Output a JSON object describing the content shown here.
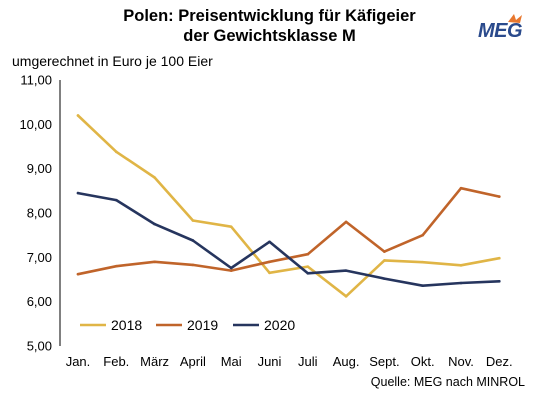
{
  "header": {
    "title_line1": "Polen: Preisentwicklung für Käfigeier",
    "title_line2": "der Gewichtsklasse M",
    "logo_text": "MEG"
  },
  "chart_data": {
    "type": "line",
    "title": "Polen: Preisentwicklung für Käfigeier der Gewichtsklasse M",
    "ylabel": "umgerechnet in Euro je 100 Eier",
    "xlabel": "",
    "categories": [
      "Jan.",
      "Feb.",
      "März",
      "April",
      "Mai",
      "Juni",
      "Juli",
      "Aug.",
      "Sept.",
      "Okt.",
      "Nov.",
      "Dez."
    ],
    "ylim": [
      5,
      11
    ],
    "yticks": [
      "5,00",
      "6,00",
      "7,00",
      "8,00",
      "9,00",
      "10,00",
      "11,00"
    ],
    "grid": false,
    "legend_position": "bottom-left",
    "series": [
      {
        "name": "2018",
        "color": "#e0b546",
        "values": [
          10.2,
          9.38,
          8.8,
          7.83,
          7.69,
          6.65,
          6.79,
          6.12,
          6.93,
          6.89,
          6.82,
          6.98
        ]
      },
      {
        "name": "2019",
        "color": "#c0642a",
        "values": [
          6.62,
          6.8,
          6.9,
          6.83,
          6.7,
          6.9,
          7.07,
          7.8,
          7.13,
          7.5,
          8.56,
          8.37
        ]
      },
      {
        "name": "2020",
        "color": "#26355e",
        "values": [
          8.45,
          8.29,
          7.75,
          7.38,
          6.76,
          7.35,
          6.64,
          6.7,
          6.52,
          6.36,
          6.42,
          6.46
        ]
      }
    ]
  },
  "footer": {
    "source": "Quelle: MEG nach MINROL"
  }
}
